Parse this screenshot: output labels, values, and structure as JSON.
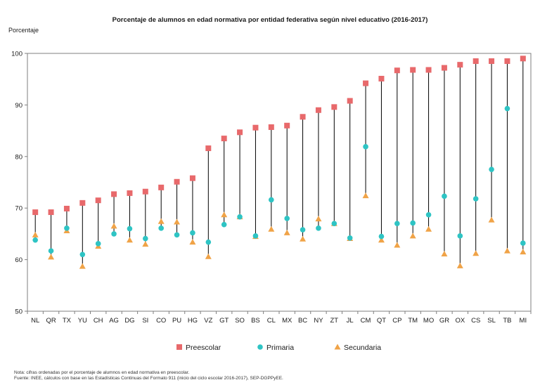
{
  "chart_data": {
    "type": "scatter",
    "title": "Porcentaje de alumnos en edad normativa por entidad federativa según nivel educativo (2016-2017)",
    "ylabel": "Porcentaje",
    "xlabel": "",
    "ylim": [
      50,
      100
    ],
    "yticks": [
      50,
      60,
      70,
      80,
      90,
      100
    ],
    "grid": false,
    "legend_position": "bottom",
    "categories": [
      "NL",
      "QR",
      "TX",
      "YU",
      "CH",
      "AG",
      "DG",
      "SI",
      "CO",
      "PU",
      "HG",
      "VZ",
      "GT",
      "SO",
      "BS",
      "CL",
      "MX",
      "BC",
      "NY",
      "ZT",
      "JL",
      "CM",
      "QT",
      "CP",
      "TM",
      "MO",
      "GR",
      "OX",
      "CS",
      "SL",
      "TB",
      "MI"
    ],
    "series": [
      {
        "name": "Preescolar",
        "color": "#e8696b",
        "marker": "square",
        "values": [
          69.2,
          69.2,
          69.9,
          71.0,
          71.5,
          72.7,
          72.9,
          73.2,
          74.0,
          75.1,
          75.8,
          81.6,
          83.5,
          84.7,
          85.6,
          85.7,
          86.0,
          87.7,
          89.0,
          89.6,
          90.8,
          94.2,
          95.1,
          96.7,
          96.8,
          96.8,
          97.2,
          97.8,
          98.5,
          98.5,
          98.5,
          99.0
        ]
      },
      {
        "name": "Primaria",
        "color": "#2ec4c4",
        "marker": "circle",
        "values": [
          63.8,
          61.7,
          66.1,
          61.0,
          63.1,
          65.0,
          66.0,
          64.1,
          66.1,
          64.8,
          65.2,
          63.4,
          66.8,
          68.3,
          64.6,
          71.6,
          68.0,
          65.8,
          66.1,
          67.0,
          64.2,
          81.9,
          64.5,
          67.0,
          67.1,
          68.7,
          72.3,
          64.6,
          71.8,
          77.5,
          89.3,
          63.2
        ]
      },
      {
        "name": "Secundaria",
        "color": "#f0a347",
        "marker": "triangle",
        "values": [
          64.8,
          60.5,
          65.6,
          58.7,
          62.6,
          66.5,
          63.8,
          63.0,
          67.4,
          67.3,
          63.4,
          60.6,
          68.7,
          68.3,
          64.5,
          65.9,
          65.2,
          64.0,
          67.9,
          67.0,
          64.1,
          72.4,
          63.8,
          62.8,
          64.6,
          65.9,
          61.1,
          58.8,
          61.2,
          67.7,
          61.7,
          61.5
        ]
      }
    ]
  },
  "notes": {
    "line1": "Nota: cifras ordenadas  por el porcentaje de alumnos  en edad  normativa  en  preescolar.",
    "line2": "Fuente: INEE, cálculos  con base en las Estadísticas  Continuas  del Formato 911  (inicio del ciclo escolar 2016-2017),  SEP-DGPPyEE."
  }
}
